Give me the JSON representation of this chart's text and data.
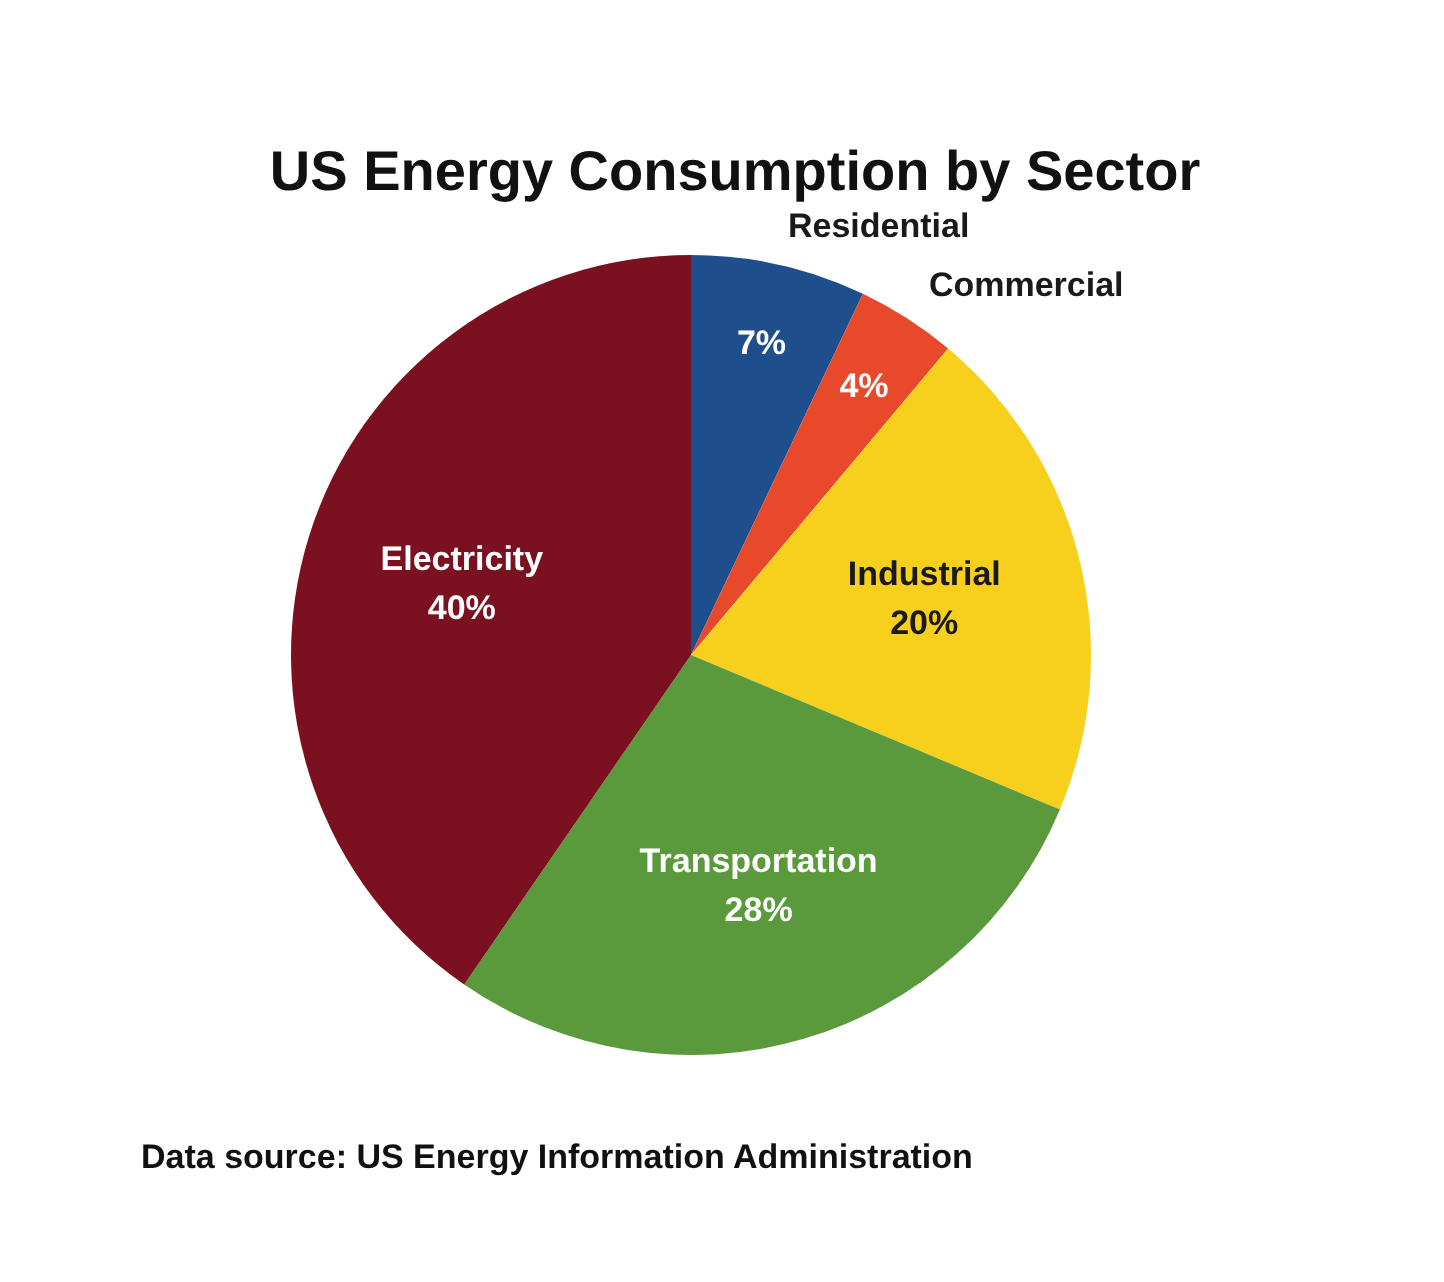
{
  "chart_data": {
    "type": "pie",
    "title": "US Energy Consumption by Sector",
    "categories": [
      "Residential",
      "Commercial",
      "Industrial",
      "Transportation",
      "Electricity"
    ],
    "values": [
      7,
      4,
      20,
      28,
      40
    ],
    "value_labels": [
      "7%",
      "4%",
      "20%",
      "28%",
      "40%"
    ],
    "colors": [
      "#1f4e8c",
      "#e8492a",
      "#f7cf1d",
      "#5a9a3c",
      "#7a1020"
    ],
    "annotations": [
      "Data source: US Energy Information Administration"
    ]
  }
}
